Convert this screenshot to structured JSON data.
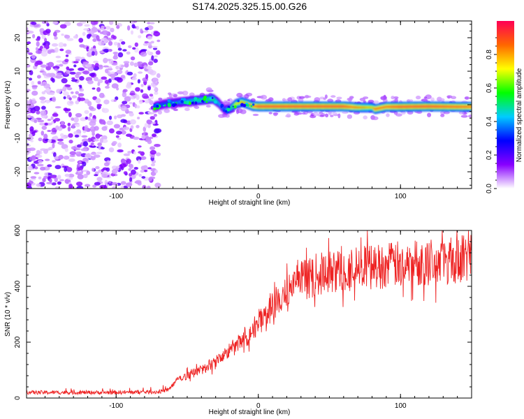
{
  "chart_data": [
    {
      "type": "heatmap",
      "title": "S174.2025.325.15.00.G26",
      "xlabel": "Height of straight line (km)",
      "ylabel": "Frequency (Hz)",
      "xlim": [
        -163,
        150
      ],
      "ylim": [
        -25,
        25
      ],
      "xticks": [
        -100,
        0,
        100
      ],
      "yticks": [
        -20,
        -10,
        0,
        10,
        20
      ],
      "colorbar": {
        "label": "Normalized spectral amplitude",
        "range": [
          0,
          1
        ],
        "ticks": [
          "0.0",
          "0.2",
          "0.4",
          "0.6",
          "0.8"
        ],
        "colors": [
          "#ffffff",
          "#8800ff",
          "#0000ff",
          "#00ccff",
          "#00ff00",
          "#ffff00",
          "#ff6600",
          "#ff0055"
        ]
      },
      "noise_region_x": [
        -163,
        -73
      ],
      "ridge": {
        "x": [
          -73,
          -65,
          -55,
          -45,
          -38,
          -32,
          -28,
          -24,
          -20,
          -16,
          -12,
          -8,
          -4,
          0,
          20,
          40,
          60,
          70,
          80,
          82,
          90,
          100,
          120,
          140,
          150
        ],
        "frequency": [
          -0.5,
          0.3,
          0.8,
          1.2,
          1.5,
          1.8,
          0.5,
          -1.5,
          -1.2,
          0.2,
          0.8,
          0.3,
          -0.4,
          -0.5,
          -0.5,
          -0.5,
          -0.5,
          -0.8,
          -0.8,
          -1.3,
          -0.6,
          -0.6,
          -0.5,
          -0.6,
          -0.6
        ],
        "amplitude": [
          0.35,
          0.35,
          0.4,
          0.5,
          0.55,
          0.6,
          0.45,
          0.35,
          0.5,
          0.7,
          0.8,
          0.8,
          0.85,
          0.95,
          0.95,
          0.95,
          0.95,
          0.85,
          0.75,
          0.9,
          0.9,
          0.95,
          0.95,
          0.92,
          0.9
        ]
      }
    },
    {
      "type": "line",
      "xlabel": "Height of straight line (km)",
      "ylabel": "SNR (10 * v/v)",
      "xlim": [
        -163,
        150
      ],
      "ylim": [
        0,
        600
      ],
      "xticks": [
        -100,
        0,
        100
      ],
      "yticks": [
        0,
        200,
        400,
        600
      ],
      "color": "#ee2222",
      "trend": {
        "x": [
          -163,
          -130,
          -100,
          -70,
          -63,
          -58,
          -50,
          -40,
          -30,
          -20,
          -10,
          0,
          10,
          20,
          30,
          40,
          50,
          60,
          80,
          100,
          120,
          150
        ],
        "y": [
          20,
          20,
          20,
          22,
          30,
          60,
          80,
          100,
          130,
          170,
          210,
          270,
          330,
          380,
          420,
          440,
          450,
          460,
          470,
          480,
          490,
          500
        ]
      },
      "noise_amplitude": "increases with SNR (about 10 near 0 km, up to 80 at the peak)"
    }
  ]
}
